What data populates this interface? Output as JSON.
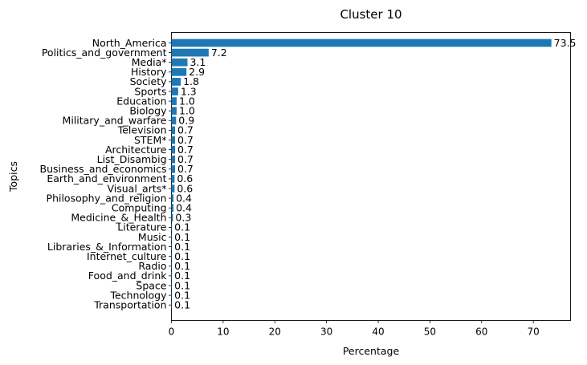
{
  "chart_data": {
    "type": "bar",
    "orientation": "horizontal",
    "title": "Cluster 10",
    "xlabel": "Percentage",
    "ylabel": "Topics",
    "xlim": [
      0,
      77.2
    ],
    "xticks": [
      0,
      10,
      20,
      30,
      40,
      50,
      60,
      70
    ],
    "grid": false,
    "bar_color": "#1f77b4",
    "categories": [
      "North_America",
      "Politics_and_government",
      "Media*",
      "History",
      "Society",
      "Sports",
      "Education",
      "Biology",
      "Military_and_warfare",
      "Television",
      "STEM*",
      "Architecture",
      "List_Disambig",
      "Business_and_economics",
      "Earth_and_environment",
      "Visual_arts*",
      "Philosophy_and_religion",
      "Computing",
      "Medicine_&_Health",
      "Literature",
      "Music",
      "Libraries_&_Information",
      "Internet_culture",
      "Radio",
      "Food_and_drink",
      "Space",
      "Technology",
      "Transportation"
    ],
    "values": [
      73.5,
      7.2,
      3.1,
      2.9,
      1.8,
      1.3,
      1.0,
      1.0,
      0.9,
      0.7,
      0.7,
      0.7,
      0.7,
      0.7,
      0.6,
      0.6,
      0.4,
      0.4,
      0.3,
      0.1,
      0.1,
      0.1,
      0.1,
      0.1,
      0.1,
      0.1,
      0.1,
      0.1
    ],
    "value_labels": [
      "73.5",
      "7.2",
      "3.1",
      "2.9",
      "1.8",
      "1.3",
      "1.0",
      "1.0",
      "0.9",
      "0.7",
      "0.7",
      "0.7",
      "0.7",
      "0.7",
      "0.6",
      "0.6",
      "0.4",
      "0.4",
      "0.3",
      "0.1",
      "0.1",
      "0.1",
      "0.1",
      "0.1",
      "0.1",
      "0.1",
      "0.1",
      "0.1"
    ]
  }
}
